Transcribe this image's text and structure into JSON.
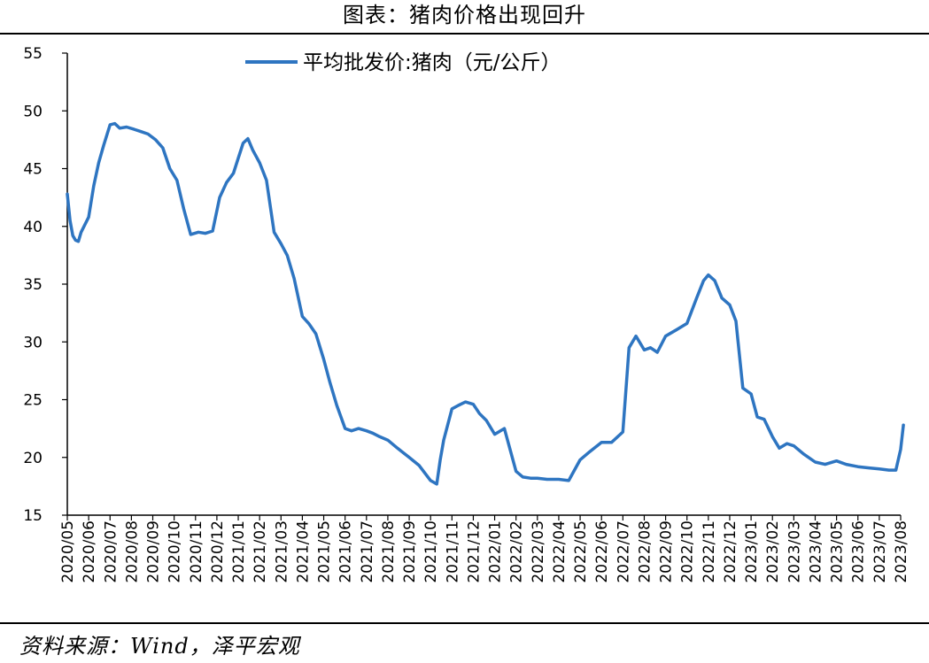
{
  "header": {
    "title": "图表：猪肉价格出现回升"
  },
  "source": "资料来源：Wind，泽平宏观",
  "colors": {
    "series": "#2E75C1",
    "axis": "#000000",
    "background": "#ffffff"
  },
  "chart_data": {
    "type": "line",
    "title": "图表：猪肉价格出现回升",
    "xlabel": "",
    "ylabel": "",
    "ylim": [
      15,
      55
    ],
    "yticks": [
      15,
      20,
      25,
      30,
      35,
      40,
      45,
      50,
      55
    ],
    "xlim": [
      "2020/05",
      "2023/08"
    ],
    "xticks": [
      "2020/05",
      "2020/06",
      "2020/07",
      "2020/08",
      "2020/09",
      "2020/10",
      "2020/11",
      "2020/12",
      "2021/01",
      "2021/02",
      "2021/03",
      "2021/04",
      "2021/05",
      "2021/06",
      "2021/07",
      "2021/08",
      "2021/09",
      "2021/10",
      "2021/11",
      "2021/12",
      "2022/01",
      "2022/02",
      "2022/03",
      "2022/04",
      "2022/05",
      "2022/06",
      "2022/07",
      "2022/08",
      "2022/09",
      "2022/10",
      "2022/11",
      "2022/12",
      "2023/01",
      "2023/02",
      "2023/03",
      "2023/04",
      "2023/05",
      "2023/06",
      "2023/07",
      "2023/08"
    ],
    "grid": false,
    "legend": "top-center",
    "series": [
      {
        "name": "平均批发价:猪肉（元/公斤）",
        "x": [
          "2020-05-01",
          "2020-05-05",
          "2020-05-09",
          "2020-05-13",
          "2020-05-17",
          "2020-05-21",
          "2020-06-01",
          "2020-06-08",
          "2020-06-15",
          "2020-06-22",
          "2020-07-01",
          "2020-07-08",
          "2020-07-15",
          "2020-07-25",
          "2020-08-05",
          "2020-08-15",
          "2020-08-25",
          "2020-09-05",
          "2020-09-15",
          "2020-09-25",
          "2020-10-05",
          "2020-10-15",
          "2020-10-25",
          "2020-11-05",
          "2020-11-15",
          "2020-11-25",
          "2020-12-05",
          "2020-12-15",
          "2020-12-25",
          "2021-01-01",
          "2021-01-08",
          "2021-01-15",
          "2021-01-22",
          "2021-02-01",
          "2021-02-10",
          "2021-02-20",
          "2021-03-01",
          "2021-03-10",
          "2021-03-20",
          "2021-04-01",
          "2021-04-10",
          "2021-04-20",
          "2021-05-01",
          "2021-05-10",
          "2021-05-20",
          "2021-06-01",
          "2021-06-10",
          "2021-06-20",
          "2021-07-01",
          "2021-07-10",
          "2021-07-20",
          "2021-08-01",
          "2021-08-15",
          "2021-09-01",
          "2021-09-15",
          "2021-10-01",
          "2021-10-10",
          "2021-10-15",
          "2021-10-20",
          "2021-11-01",
          "2021-11-10",
          "2021-11-20",
          "2021-12-01",
          "2021-12-10",
          "2021-12-20",
          "2022-01-01",
          "2022-01-15",
          "2022-02-01",
          "2022-02-10",
          "2022-02-20",
          "2022-03-01",
          "2022-03-15",
          "2022-04-01",
          "2022-04-15",
          "2022-05-01",
          "2022-05-15",
          "2022-06-01",
          "2022-06-15",
          "2022-07-01",
          "2022-07-10",
          "2022-07-20",
          "2022-08-01",
          "2022-08-10",
          "2022-08-20",
          "2022-09-01",
          "2022-09-15",
          "2022-10-01",
          "2022-10-15",
          "2022-10-25",
          "2022-11-01",
          "2022-11-10",
          "2022-11-20",
          "2022-12-01",
          "2022-12-10",
          "2022-12-20",
          "2023-01-01",
          "2023-01-10",
          "2023-01-20",
          "2023-02-01",
          "2023-02-10",
          "2023-02-20",
          "2023-03-01",
          "2023-03-15",
          "2023-04-01",
          "2023-04-15",
          "2023-05-01",
          "2023-05-15",
          "2023-06-01",
          "2023-06-15",
          "2023-07-01",
          "2023-07-15",
          "2023-07-25",
          "2023-08-01",
          "2023-08-05"
        ],
        "values": [
          42.8,
          40.5,
          39.2,
          38.8,
          38.7,
          39.5,
          40.8,
          43.5,
          45.5,
          47.0,
          48.8,
          48.9,
          48.5,
          48.6,
          48.4,
          48.2,
          48.0,
          47.5,
          46.8,
          45.0,
          44.0,
          41.5,
          39.3,
          39.5,
          39.4,
          39.6,
          42.5,
          43.8,
          44.6,
          45.9,
          47.2,
          47.6,
          46.6,
          45.5,
          44.0,
          39.5,
          38.5,
          37.5,
          35.5,
          32.2,
          31.6,
          30.7,
          28.5,
          26.5,
          24.5,
          22.5,
          22.3,
          22.5,
          22.3,
          22.1,
          21.8,
          21.5,
          20.8,
          20.0,
          19.3,
          18.0,
          17.7,
          19.8,
          21.5,
          24.2,
          24.5,
          24.8,
          24.6,
          23.8,
          23.2,
          22.0,
          22.5,
          18.8,
          18.3,
          18.2,
          18.2,
          18.1,
          18.1,
          18.0,
          19.8,
          20.5,
          21.3,
          21.3,
          22.2,
          29.5,
          30.5,
          29.3,
          29.5,
          29.1,
          30.5,
          31.0,
          31.6,
          33.8,
          35.3,
          35.8,
          35.3,
          33.8,
          33.2,
          31.8,
          26.0,
          25.5,
          23.5,
          23.3,
          21.8,
          20.8,
          21.2,
          21.0,
          20.3,
          19.6,
          19.4,
          19.7,
          19.4,
          19.2,
          19.1,
          19.0,
          18.9,
          18.9,
          20.7,
          22.8
        ]
      }
    ]
  }
}
